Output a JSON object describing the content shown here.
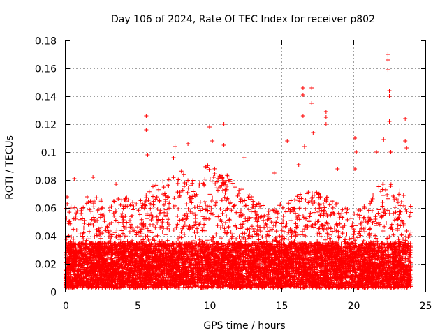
{
  "chart_data": {
    "type": "scatter",
    "title": "Day 106 of 2024, Rate Of TEC Index for receiver p802",
    "xlabel": "GPS time / hours",
    "ylabel": "ROTI / TECUs",
    "xlim": [
      0,
      25
    ],
    "ylim": [
      0,
      0.18
    ],
    "x_ticks": [
      "0",
      "5",
      "10",
      "15",
      "20",
      "25"
    ],
    "y_ticks": [
      "0",
      "0.02",
      "0.04",
      "0.06",
      "0.08",
      "0.1",
      "0.12",
      "0.14",
      "0.16",
      "0.18"
    ],
    "grid": true,
    "marker": "+",
    "colors": {
      "series": "#ff0000",
      "grid": "#a0a0a0",
      "axes": "#000000"
    },
    "series": [
      {
        "name": "ROTI",
        "x_range": [
          0,
          24
        ],
        "baseline_range": [
          0.003,
          0.035
        ],
        "notable_points": [
          {
            "x": 0.1,
            "y": 0.068
          },
          {
            "x": 0.6,
            "y": 0.081
          },
          {
            "x": 1.5,
            "y": 0.068
          },
          {
            "x": 1.9,
            "y": 0.082
          },
          {
            "x": 3.5,
            "y": 0.077
          },
          {
            "x": 5.6,
            "y": 0.126
          },
          {
            "x": 5.6,
            "y": 0.116
          },
          {
            "x": 5.7,
            "y": 0.098
          },
          {
            "x": 7.5,
            "y": 0.096
          },
          {
            "x": 7.6,
            "y": 0.104
          },
          {
            "x": 8.5,
            "y": 0.106
          },
          {
            "x": 10.0,
            "y": 0.118
          },
          {
            "x": 10.2,
            "y": 0.108
          },
          {
            "x": 11.0,
            "y": 0.12
          },
          {
            "x": 11.0,
            "y": 0.105
          },
          {
            "x": 12.4,
            "y": 0.096
          },
          {
            "x": 14.5,
            "y": 0.085
          },
          {
            "x": 15.4,
            "y": 0.108
          },
          {
            "x": 16.2,
            "y": 0.091
          },
          {
            "x": 16.5,
            "y": 0.146
          },
          {
            "x": 16.5,
            "y": 0.141
          },
          {
            "x": 16.5,
            "y": 0.126
          },
          {
            "x": 16.6,
            "y": 0.104
          },
          {
            "x": 17.1,
            "y": 0.146
          },
          {
            "x": 17.1,
            "y": 0.135
          },
          {
            "x": 17.2,
            "y": 0.114
          },
          {
            "x": 18.1,
            "y": 0.129
          },
          {
            "x": 18.1,
            "y": 0.125
          },
          {
            "x": 18.1,
            "y": 0.12
          },
          {
            "x": 18.9,
            "y": 0.088
          },
          {
            "x": 20.1,
            "y": 0.11
          },
          {
            "x": 20.2,
            "y": 0.1
          },
          {
            "x": 20.1,
            "y": 0.088
          },
          {
            "x": 21.6,
            "y": 0.1
          },
          {
            "x": 22.1,
            "y": 0.109
          },
          {
            "x": 22.4,
            "y": 0.17
          },
          {
            "x": 22.4,
            "y": 0.166
          },
          {
            "x": 22.4,
            "y": 0.159
          },
          {
            "x": 22.5,
            "y": 0.144
          },
          {
            "x": 22.5,
            "y": 0.14
          },
          {
            "x": 22.5,
            "y": 0.122
          },
          {
            "x": 22.6,
            "y": 0.1
          },
          {
            "x": 23.6,
            "y": 0.124
          },
          {
            "x": 23.6,
            "y": 0.108
          },
          {
            "x": 23.7,
            "y": 0.103
          }
        ]
      }
    ]
  }
}
